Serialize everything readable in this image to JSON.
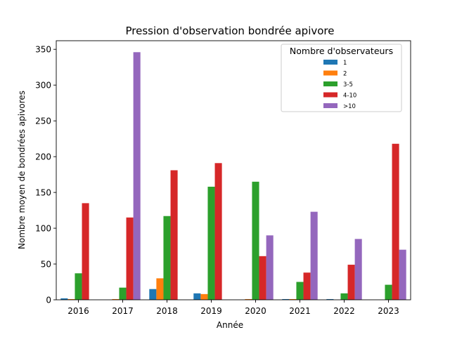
{
  "chart_data": {
    "type": "bar",
    "title": "Pression d'observation bondrée apivore",
    "xlabel": "Année",
    "ylabel": "Nombre moyen de bondrées apivores",
    "categories": [
      "2016",
      "2017",
      "2018",
      "2019",
      "2020",
      "2021",
      "2022",
      "2023"
    ],
    "ylim": [
      0,
      362
    ],
    "yticks": [
      0,
      50,
      100,
      150,
      200,
      250,
      300,
      350
    ],
    "grid": false,
    "legend": {
      "title": "Nombre d'observateurs",
      "placement": "top-right"
    },
    "series": [
      {
        "name": "1",
        "color": "#1f77b4",
        "values": [
          2,
          0,
          15,
          9,
          0,
          1,
          1,
          0
        ]
      },
      {
        "name": "2",
        "color": "#ff7f0e",
        "values": [
          1,
          1,
          30,
          8,
          1,
          1,
          0,
          0
        ]
      },
      {
        "name": "3-5",
        "color": "#2ca02c",
        "values": [
          37,
          17,
          117,
          158,
          165,
          25,
          9,
          21
        ]
      },
      {
        "name": "4-10",
        "color": "#d62728",
        "values": [
          135,
          115,
          181,
          191,
          61,
          38,
          49,
          218
        ]
      },
      {
        "name": ">10",
        "color": "#9467bd",
        "values": [
          null,
          346,
          null,
          null,
          90,
          123,
          85,
          70
        ]
      }
    ]
  }
}
